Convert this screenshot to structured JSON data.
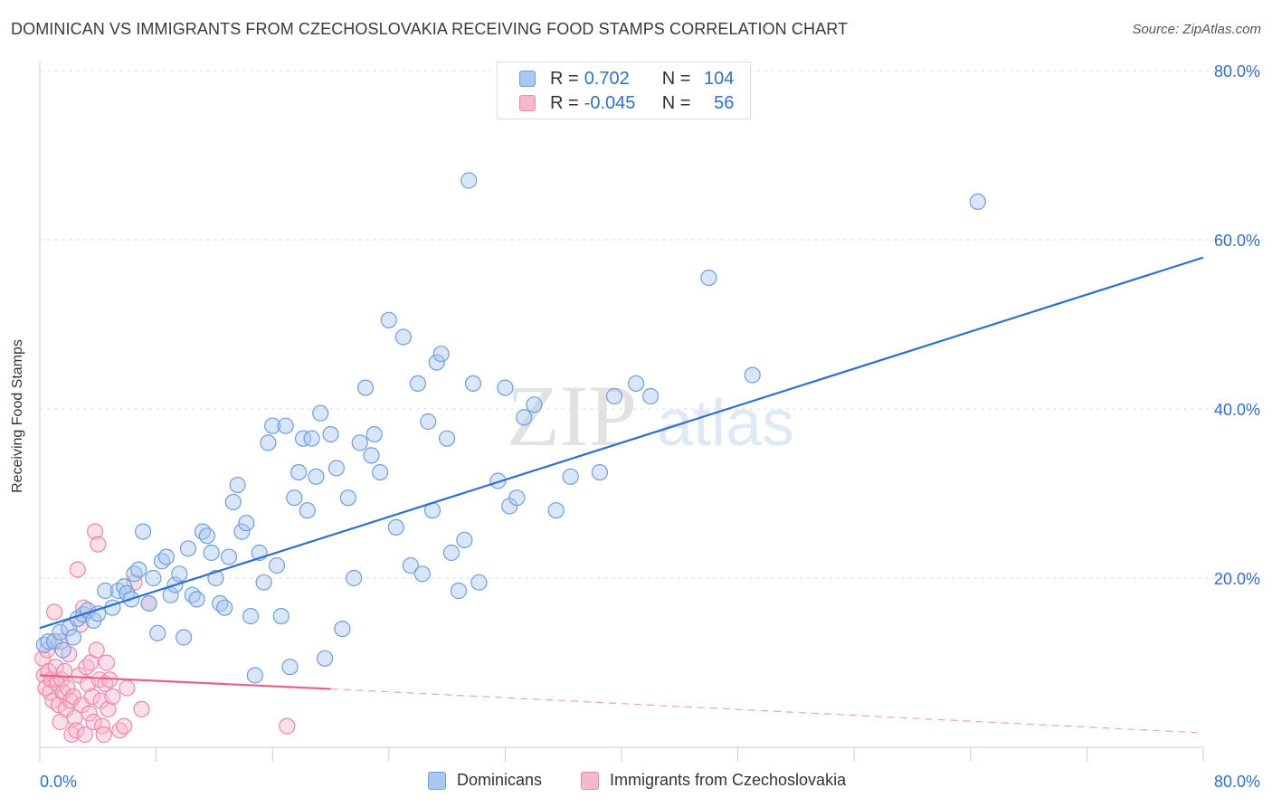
{
  "header": {
    "title": "DOMINICAN VS IMMIGRANTS FROM CZECHOSLOVAKIA RECEIVING FOOD STAMPS CORRELATION CHART",
    "source": "Source: ZipAtlas.com"
  },
  "watermark": {
    "zip": "ZIP",
    "atlas": "atlas"
  },
  "colors": {
    "blue_fill": "#a9c8f0",
    "blue_stroke": "#6e9fe0",
    "blue_line": "#2f6fd0",
    "pink_fill": "#f7b8cb",
    "pink_stroke": "#ee88a8",
    "pink_line": "#e8608c",
    "value_text": "#2f6fd0",
    "grid": "#dcdcdc"
  },
  "legend_top": {
    "rows": [
      {
        "r_label": "R =",
        "r_value": "0.702",
        "n_label": "N =",
        "n_value": "104"
      },
      {
        "r_label": "R =",
        "r_value": "-0.045",
        "n_label": "N =",
        "n_value": "56"
      }
    ]
  },
  "legend_bottom": {
    "items": [
      {
        "label": "Dominicans"
      },
      {
        "label": "Immigrants from Czechoslovakia"
      }
    ]
  },
  "chart_data": {
    "type": "scatter",
    "title": "DOMINICAN VS IMMIGRANTS FROM CZECHOSLOVAKIA RECEIVING FOOD STAMPS CORRELATION CHART",
    "xlabel": "",
    "ylabel": "Receiving Food Stamps",
    "xlim": [
      0,
      80
    ],
    "ylim": [
      0,
      80
    ],
    "x_tick_labels": [
      "0.0%",
      "80.0%"
    ],
    "y_tick_labels": [
      "20.0%",
      "40.0%",
      "60.0%",
      "80.0%"
    ],
    "y_ticks": [
      20,
      40,
      60,
      80
    ],
    "grid": true,
    "legend": "top-center",
    "series": [
      {
        "name": "Dominicans",
        "r": 0.702,
        "n": 104,
        "trend": {
          "x": [
            0,
            80
          ],
          "y": [
            14.1,
            57.9
          ],
          "style": "solid"
        },
        "points": [
          [
            0.3,
            12.1
          ],
          [
            0.6,
            12.5
          ],
          [
            1.0,
            12.5
          ],
          [
            1.4,
            13.6
          ],
          [
            1.6,
            11.5
          ],
          [
            2.0,
            14.1
          ],
          [
            2.3,
            13.0
          ],
          [
            2.6,
            15.2
          ],
          [
            3.0,
            15.7
          ],
          [
            3.3,
            16.2
          ],
          [
            3.7,
            15.0
          ],
          [
            4.0,
            15.8
          ],
          [
            4.5,
            18.5
          ],
          [
            5.0,
            16.5
          ],
          [
            5.4,
            18.5
          ],
          [
            5.8,
            19.0
          ],
          [
            6.0,
            18.2
          ],
          [
            6.3,
            17.5
          ],
          [
            6.5,
            20.5
          ],
          [
            6.8,
            21.0
          ],
          [
            7.1,
            25.5
          ],
          [
            7.5,
            17.0
          ],
          [
            7.8,
            20.0
          ],
          [
            8.1,
            13.5
          ],
          [
            8.4,
            22.0
          ],
          [
            8.7,
            22.5
          ],
          [
            9.0,
            18.0
          ],
          [
            9.3,
            19.2
          ],
          [
            9.6,
            20.5
          ],
          [
            9.9,
            13.0
          ],
          [
            10.2,
            23.5
          ],
          [
            10.5,
            18.0
          ],
          [
            10.8,
            17.5
          ],
          [
            11.2,
            25.5
          ],
          [
            11.5,
            25.0
          ],
          [
            11.8,
            23.0
          ],
          [
            12.1,
            20.0
          ],
          [
            12.4,
            17.0
          ],
          [
            12.7,
            16.5
          ],
          [
            13.0,
            22.5
          ],
          [
            13.3,
            29.0
          ],
          [
            13.6,
            31.0
          ],
          [
            13.9,
            25.5
          ],
          [
            14.2,
            26.5
          ],
          [
            14.5,
            15.5
          ],
          [
            14.8,
            8.5
          ],
          [
            15.1,
            23.0
          ],
          [
            15.4,
            19.5
          ],
          [
            15.7,
            36.0
          ],
          [
            16.0,
            38.0
          ],
          [
            16.3,
            21.5
          ],
          [
            16.6,
            15.5
          ],
          [
            16.9,
            38.0
          ],
          [
            17.2,
            9.5
          ],
          [
            17.5,
            29.5
          ],
          [
            17.8,
            32.5
          ],
          [
            18.1,
            36.5
          ],
          [
            18.4,
            28.0
          ],
          [
            18.7,
            36.5
          ],
          [
            19.0,
            32.0
          ],
          [
            19.3,
            39.5
          ],
          [
            19.6,
            10.5
          ],
          [
            20.0,
            37.0
          ],
          [
            20.4,
            33.0
          ],
          [
            20.8,
            14.0
          ],
          [
            21.2,
            29.5
          ],
          [
            21.6,
            20.0
          ],
          [
            22.0,
            36.0
          ],
          [
            22.4,
            42.5
          ],
          [
            22.8,
            34.5
          ],
          [
            23.0,
            37.0
          ],
          [
            23.4,
            32.5
          ],
          [
            24.0,
            50.5
          ],
          [
            24.5,
            26.0
          ],
          [
            25.0,
            48.5
          ],
          [
            25.5,
            21.5
          ],
          [
            26.0,
            43.0
          ],
          [
            26.3,
            20.5
          ],
          [
            26.7,
            38.5
          ],
          [
            27.0,
            28.0
          ],
          [
            27.3,
            45.5
          ],
          [
            27.6,
            46.5
          ],
          [
            28.0,
            36.5
          ],
          [
            28.3,
            23.0
          ],
          [
            28.8,
            18.5
          ],
          [
            29.2,
            24.5
          ],
          [
            29.5,
            67.0
          ],
          [
            29.8,
            43.0
          ],
          [
            30.2,
            19.5
          ],
          [
            31.5,
            31.5
          ],
          [
            32.0,
            42.5
          ],
          [
            32.3,
            28.5
          ],
          [
            32.8,
            29.5
          ],
          [
            33.3,
            39.0
          ],
          [
            34.0,
            40.5
          ],
          [
            35.5,
            28.0
          ],
          [
            36.5,
            32.0
          ],
          [
            38.5,
            32.5
          ],
          [
            39.5,
            41.5
          ],
          [
            41.0,
            43.0
          ],
          [
            42.0,
            41.5
          ],
          [
            46.0,
            55.5
          ],
          [
            49.0,
            44.0
          ],
          [
            64.5,
            64.5
          ]
        ]
      },
      {
        "name": "Immigrants from Czechoslovakia",
        "r": -0.045,
        "n": 56,
        "trend": {
          "x": [
            0,
            20
          ],
          "y": [
            8.5,
            6.9
          ],
          "style": "solid",
          "extended": {
            "x": [
              20,
              80
            ],
            "y": [
              6.9,
              1.7
            ],
            "style": "dashed"
          }
        },
        "points": [
          [
            0.2,
            10.5
          ],
          [
            0.3,
            8.5
          ],
          [
            0.4,
            7.0
          ],
          [
            0.5,
            11.5
          ],
          [
            0.6,
            9.0
          ],
          [
            0.7,
            6.5
          ],
          [
            0.8,
            8.0
          ],
          [
            0.9,
            5.5
          ],
          [
            1.0,
            16.0
          ],
          [
            1.1,
            9.5
          ],
          [
            1.2,
            7.5
          ],
          [
            1.3,
            5.0
          ],
          [
            1.4,
            12.5
          ],
          [
            1.5,
            8.0
          ],
          [
            1.6,
            6.5
          ],
          [
            1.7,
            9.0
          ],
          [
            1.8,
            4.5
          ],
          [
            1.9,
            7.0
          ],
          [
            2.0,
            11.0
          ],
          [
            2.1,
            5.5
          ],
          [
            2.2,
            1.5
          ],
          [
            2.3,
            6.0
          ],
          [
            2.4,
            3.5
          ],
          [
            2.5,
            2.0
          ],
          [
            2.6,
            21.0
          ],
          [
            2.7,
            8.5
          ],
          [
            2.8,
            14.5
          ],
          [
            2.9,
            5.0
          ],
          [
            3.0,
            16.5
          ],
          [
            3.1,
            1.5
          ],
          [
            3.2,
            9.5
          ],
          [
            3.3,
            7.5
          ],
          [
            3.4,
            4.0
          ],
          [
            3.5,
            10.0
          ],
          [
            3.6,
            6.0
          ],
          [
            3.7,
            3.0
          ],
          [
            3.8,
            25.5
          ],
          [
            3.9,
            11.5
          ],
          [
            4.0,
            24.0
          ],
          [
            4.1,
            8.0
          ],
          [
            4.2,
            5.5
          ],
          [
            4.3,
            2.5
          ],
          [
            4.4,
            1.5
          ],
          [
            4.5,
            7.5
          ],
          [
            4.6,
            10.0
          ],
          [
            4.7,
            4.5
          ],
          [
            4.8,
            8.0
          ],
          [
            5.0,
            6.0
          ],
          [
            5.5,
            2.0
          ],
          [
            5.8,
            2.5
          ],
          [
            6.0,
            7.0
          ],
          [
            6.5,
            19.5
          ],
          [
            7.0,
            4.5
          ],
          [
            7.5,
            17.0
          ],
          [
            17.0,
            2.5
          ],
          [
            1.4,
            3.0
          ]
        ]
      }
    ]
  }
}
